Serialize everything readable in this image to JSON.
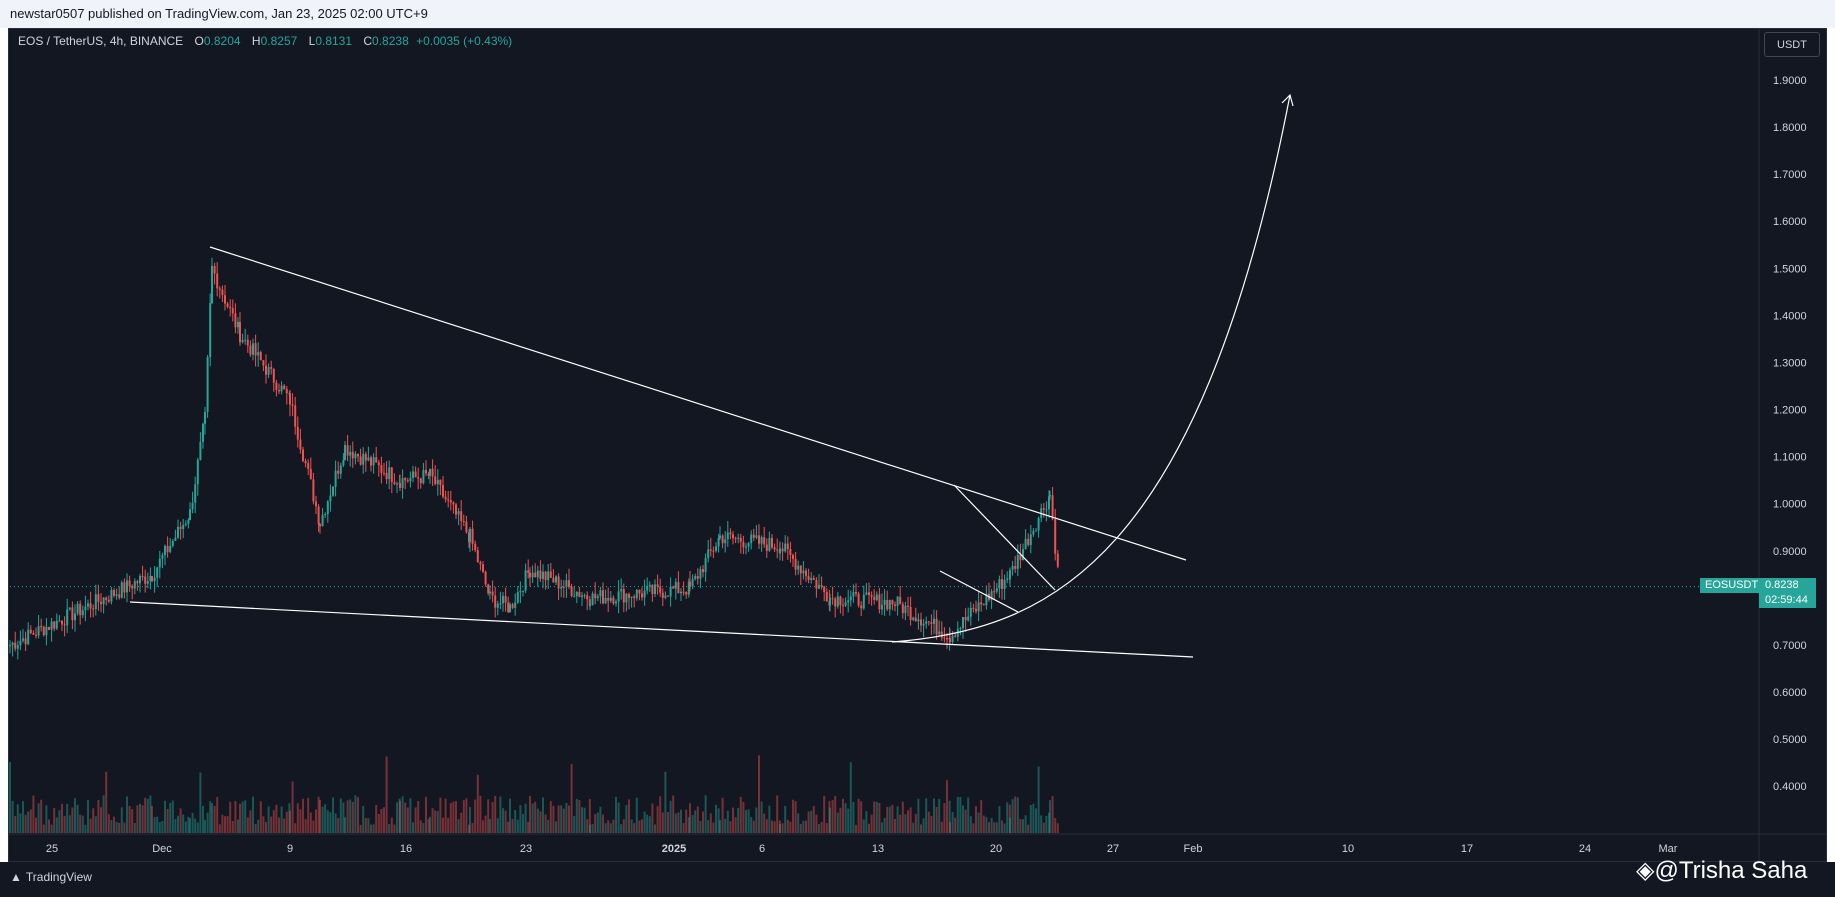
{
  "header": {
    "published_text": "newstar0507 published on TradingView.com, Jan 23, 2025 02:00 UTC+9"
  },
  "legend": {
    "symbol": "EOS / TetherUS, 4h, BINANCE",
    "o_label": "O",
    "o_value": "0.8204",
    "h_label": "H",
    "h_value": "0.8257",
    "l_label": "L",
    "l_value": "0.8131",
    "c_label": "C",
    "c_value": "0.8238",
    "change": "+0.0035 (+0.43%)"
  },
  "price_scale": {
    "currency": "USDT",
    "ticks": [
      "1.9000",
      "1.8000",
      "1.7000",
      "1.6000",
      "1.5000",
      "1.4000",
      "1.3000",
      "1.2000",
      "1.1000",
      "1.0000",
      "0.9000",
      "0.8000",
      "0.7000",
      "0.6000",
      "0.5000",
      "0.4000"
    ],
    "last_label": "EOSUSDT",
    "last_price": "0.8238",
    "countdown": "02:59:44"
  },
  "time_axis": {
    "ticks": [
      "25",
      "Dec",
      "9",
      "16",
      "23",
      "2025",
      "6",
      "13",
      "20",
      "27",
      "Feb",
      "10",
      "17",
      "24",
      "Mar"
    ]
  },
  "footer": {
    "brand": "TradingView",
    "watermark": "@Trisha Saha"
  },
  "colors": {
    "background": "#131722",
    "up": "#26a69a",
    "down": "#ef5350",
    "drawing": "#ffffff"
  },
  "chart_data": {
    "type": "candlestick",
    "title": "EOS / TetherUS, 4h, BINANCE",
    "y_range": [
      0.27,
      1.95
    ],
    "x_ticks": [
      "25",
      "Dec",
      "9",
      "16",
      "23",
      "2025",
      "6",
      "13",
      "20",
      "27",
      "Feb",
      "10",
      "17",
      "24",
      "Mar"
    ],
    "close_path": [
      [
        "25",
        0.7
      ],
      [
        "Dec",
        0.85
      ],
      [
        "",
        0.98
      ],
      [
        "",
        1.18
      ],
      [
        "",
        1.5
      ],
      [
        "",
        1.36
      ],
      [
        "9",
        1.22
      ],
      [
        "",
        0.96
      ],
      [
        "",
        1.12
      ],
      [
        "16",
        1.05
      ],
      [
        "",
        1.06
      ],
      [
        "",
        0.93
      ],
      [
        "",
        0.8
      ],
      [
        "23",
        0.78
      ],
      [
        "",
        0.86
      ],
      [
        "",
        0.8
      ],
      [
        "2025",
        0.82
      ],
      [
        "",
        0.93
      ],
      [
        "6",
        0.91
      ],
      [
        "",
        0.8
      ],
      [
        "",
        0.79
      ],
      [
        "13",
        0.72
      ],
      [
        "",
        0.85
      ],
      [
        "",
        1.02
      ],
      [
        "20",
        0.81
      ],
      [
        "",
        0.82
      ]
    ],
    "last_close": 0.8238,
    "drawings": [
      "descending trendline from the early-December high",
      "lower support trendline",
      "falling wedge near Jan 20",
      "parabolic projection arrow"
    ]
  }
}
